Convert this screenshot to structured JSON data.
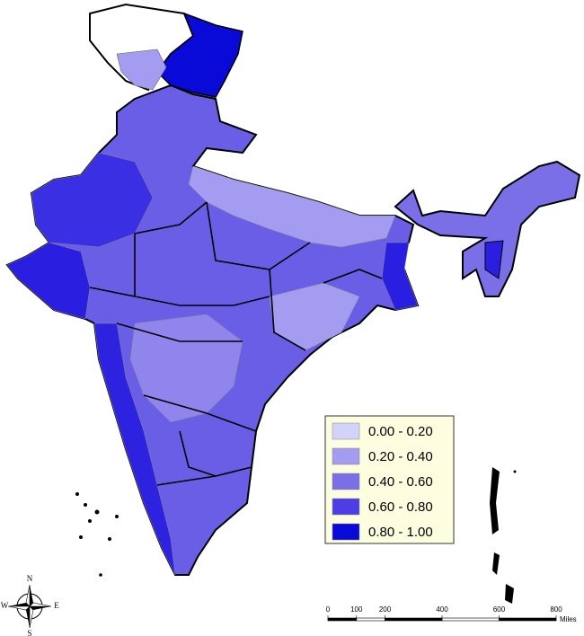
{
  "legend": {
    "items": [
      {
        "label": "0.00 - 0.20",
        "color": "#d2d2fa"
      },
      {
        "label": "0.20 - 0.40",
        "color": "#a39cf0"
      },
      {
        "label": "0.40 - 0.60",
        "color": "#7b6fe8"
      },
      {
        "label": "0.60 - 0.80",
        "color": "#4c3de4"
      },
      {
        "label": "0.80 - 1.00",
        "color": "#0a0ad8"
      }
    ]
  },
  "scale_bar": {
    "ticks": [
      0,
      100,
      200,
      400,
      600,
      800
    ],
    "unit": "Miles"
  },
  "compass": {
    "north": "N",
    "east": "E",
    "south": "S",
    "west": "W"
  }
}
